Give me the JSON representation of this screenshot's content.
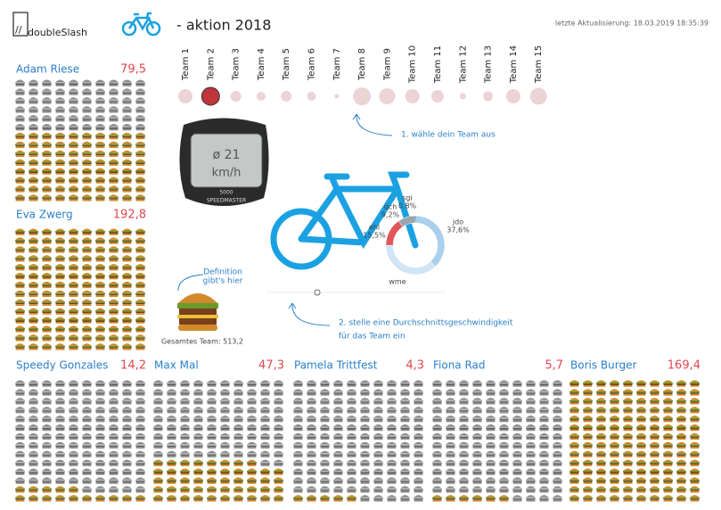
{
  "header": {
    "logo_mark": "//",
    "logo": "doubleSlash",
    "title": "- aktion 2018",
    "updated": "letzte Aktualisierung: 18.03.2019 18:35:39"
  },
  "teams": {
    "labels": [
      "Team 1",
      "Team 2",
      "Team 3",
      "Team 4",
      "Team 5",
      "Team 6",
      "Team 7",
      "Team 8",
      "Team 9",
      "Team 10",
      "Team 11",
      "Team 12",
      "Team 13",
      "Team 14",
      "Team 15"
    ],
    "sizes": [
      16,
      20,
      12,
      10,
      12,
      10,
      5,
      20,
      18,
      16,
      14,
      7,
      11,
      16,
      19
    ],
    "selected": 1
  },
  "speedometer": {
    "value": "ø 21",
    "unit": "km/h",
    "model": "5000",
    "brand": "SPEEDMASTER"
  },
  "annotations": {
    "step1": "1. wähle dein Team aus",
    "step2": [
      "2. stelle eine Durchschnittsgeschwindigkeit",
      "für das Team ein"
    ],
    "definition": [
      "Definition",
      "gibt's hier"
    ],
    "total": "Gesamtes Team: 513,2"
  },
  "chart_data": {
    "type": "pie",
    "categories": [
      "sgi",
      "jdo",
      "wme",
      "ehl",
      "qch"
    ],
    "values": [
      0.8,
      37.6,
      36.9,
      15.5,
      9.2
    ],
    "value_labels": [
      "0,8%",
      "37,6%",
      null,
      "15,5%",
      "9,2%"
    ],
    "colors": [
      "#2b5d8c",
      "#a9d0ec",
      "#cfe5f5",
      "#e05659",
      "#9aa4ad"
    ],
    "donut": true
  },
  "persons": [
    {
      "name": "Adam Riese",
      "value": 79.5,
      "value_label": "79,5"
    },
    {
      "name": "Eva Zwerg",
      "value": 192.8,
      "value_label": "192,8"
    },
    {
      "name": "Speedy Gonzales",
      "value": 14.2,
      "value_label": "14,2"
    },
    {
      "name": "Max Mal",
      "value": 47.3,
      "value_label": "47,3"
    },
    {
      "name": "Pamela Trittfest",
      "value": 4.3,
      "value_label": "4,3"
    },
    {
      "name": "Fiona Rad",
      "value": 5.7,
      "value_label": "5,7"
    },
    {
      "name": "Boris Burger",
      "value": 169.4,
      "value_label": "169,4"
    }
  ]
}
